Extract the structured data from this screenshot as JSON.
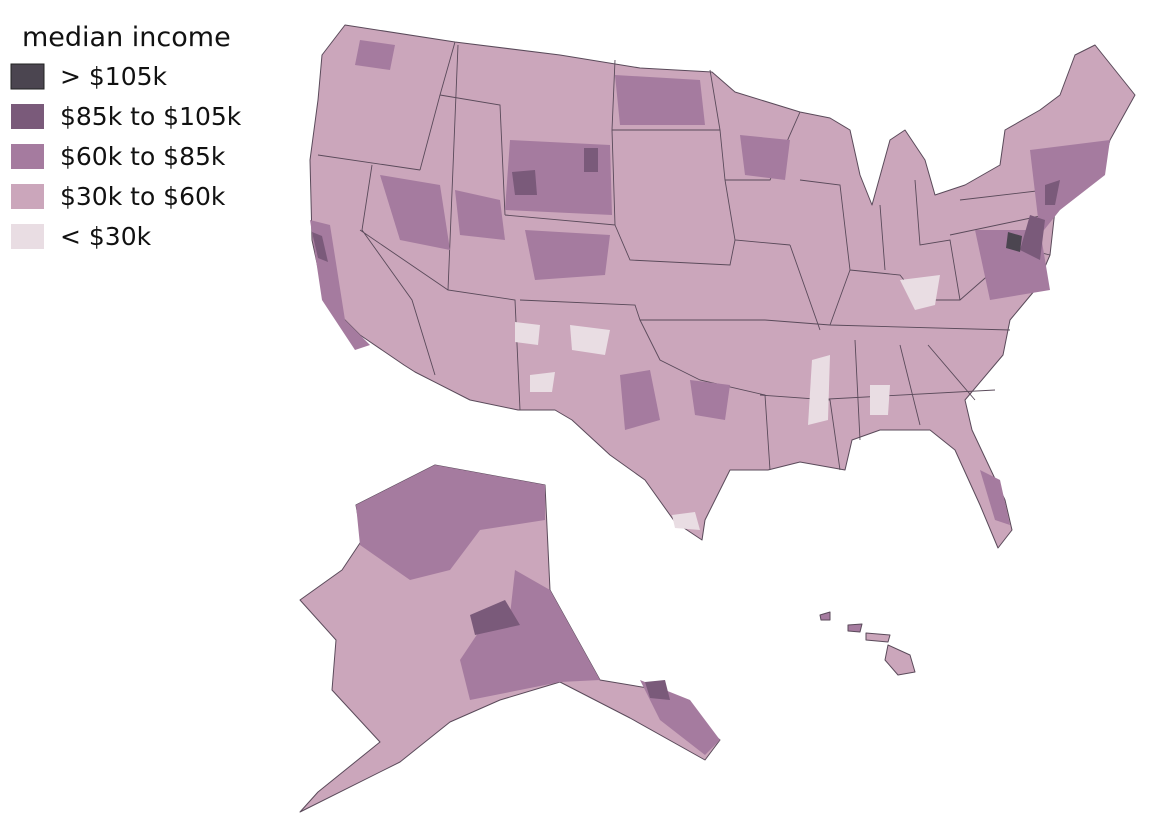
{
  "legend": {
    "title": "median income",
    "items": [
      {
        "label": "> $105k",
        "color": "#4b4550"
      },
      {
        "label": "$85k to $105k",
        "color": "#7a5a7a"
      },
      {
        "label": "$60k to $85k",
        "color": "#a57b9f"
      },
      {
        "label": "$30k to $60k",
        "color": "#cba6bb"
      },
      {
        "label": "< $30k",
        "color": "#e9dde3"
      }
    ]
  }
}
